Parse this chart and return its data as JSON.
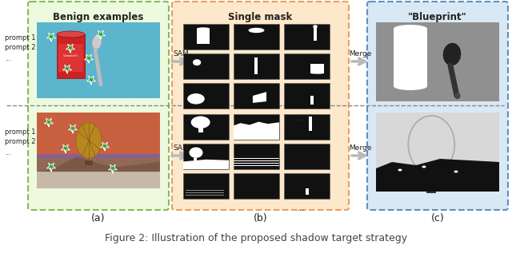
{
  "figure_caption": "Figure 2: Illustration of the proposed shadow target strategy",
  "panel_a_title": "Benign examples",
  "panel_b_title": "Single mask",
  "panel_c_title": "\"Blueprint\"",
  "label_a": "(a)",
  "label_b": "(b)",
  "label_c": "(c)",
  "sam_label": "SAM",
  "merge_label": "Merge",
  "prompt_labels": [
    "prompt 1",
    "prompt 2",
    "..."
  ],
  "bg_color": "#ffffff",
  "panel_a_bg": "#edfade",
  "panel_a_border": "#88bb55",
  "panel_b_bg": "#fde8cc",
  "panel_b_border": "#e8a060",
  "panel_c_bg": "#d8e8f5",
  "panel_c_border": "#6090c0",
  "arrow_color": "#b8b8b8",
  "text_color": "#222222",
  "caption_color": "#444444",
  "divider_color": "#888888",
  "mask_bg": "#111111",
  "mask_white": "#ffffff",
  "blueprint_gray": "#909090",
  "blueprint_gray2": "#d8d8d8",
  "star_color": "#33aa33",
  "star_outline": "#ffffff"
}
